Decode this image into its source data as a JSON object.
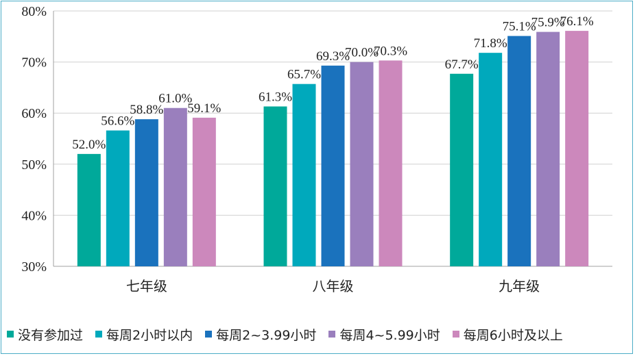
{
  "chart_data": {
    "type": "bar",
    "categories": [
      "七年级",
      "八年级",
      "九年级"
    ],
    "series": [
      {
        "name": "没有参加过",
        "color": "#00a99a",
        "values": [
          52.0,
          61.3,
          67.7
        ],
        "labels": [
          "52.0%",
          "61.3%",
          "67.7%"
        ]
      },
      {
        "name": "每周2小时以内",
        "color": "#00a9bc",
        "values": [
          56.6,
          65.7,
          71.8
        ],
        "labels": [
          "56.6%",
          "65.7%",
          "71.8%"
        ]
      },
      {
        "name": "每周2~3.99小时",
        "color": "#1a72bd",
        "values": [
          58.8,
          69.3,
          75.1
        ],
        "labels": [
          "58.8%",
          "69.3%",
          "75.1%"
        ]
      },
      {
        "name": "每周4~5.99小时",
        "color": "#9a7fbd",
        "values": [
          61.0,
          70.0,
          75.9
        ],
        "labels": [
          "61.0%",
          "70.0%",
          "75.9%"
        ]
      },
      {
        "name": "每周6小时及以上",
        "color": "#cc88bc",
        "values": [
          59.1,
          70.3,
          76.1
        ],
        "labels": [
          "59.1%",
          "70.3%",
          "76.1%"
        ]
      }
    ],
    "ylim": [
      30,
      80
    ],
    "yticks": [
      "30%",
      "40%",
      "50%",
      "60%",
      "70%",
      "80%"
    ],
    "grid": true,
    "legend_position": "bottom"
  }
}
